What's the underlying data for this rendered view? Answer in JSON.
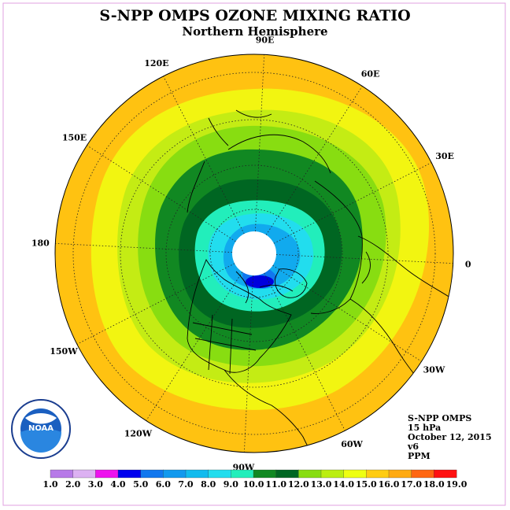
{
  "title": "S-NPP OMPS OZONE MIXING RATIO",
  "subtitle": "Northern Hemisphere",
  "longitude_labels": [
    "90E",
    "60E",
    "30E",
    "0",
    "30W",
    "60W",
    "90W",
    "120W",
    "150W",
    "180",
    "150E",
    "120E"
  ],
  "info": {
    "line1": "S-NPP OMPS",
    "line2": "15 hPa",
    "line3": "October 12, 2015",
    "line4": "v6",
    "line5": "PPM"
  },
  "logo": {
    "text": "NOAA",
    "ring_text": "NATIONAL OCEANIC AND ATMOSPHERIC ADMINISTRATION · U.S. DEPARTMENT OF COMMERCE"
  },
  "colorbar": {
    "ticks": [
      "1.0",
      "2.0",
      "3.0",
      "4.0",
      "5.0",
      "6.0",
      "7.0",
      "8.0",
      "9.0",
      "10.0",
      "11.0",
      "12.0",
      "13.0",
      "14.0",
      "15.0",
      "16.0",
      "17.0",
      "18.0",
      "19.0"
    ],
    "colors": [
      "#b77ae8",
      "#dcb1f2",
      "#ee11ee",
      "#0000ee",
      "#1177ee",
      "#1199ee",
      "#11bbee",
      "#22ddee",
      "#22eebb",
      "#118822",
      "#006622",
      "#88dd11",
      "#bbee11",
      "#eeff11",
      "#ffcc11",
      "#ffaa11",
      "#ff6611",
      "#ff1111",
      "#884422"
    ]
  },
  "map_colors": {
    "level_15": "#ffc211",
    "level_14": "#f2f511",
    "level_13": "#c4ec14",
    "level_12": "#88dd11",
    "level_11": "#118822",
    "level_10": "#006622",
    "level_9": "#22eebb",
    "level_8": "#22ddee",
    "level_7": "#11aaee",
    "level_5": "#1177ee",
    "level_4": "#0000dd",
    "no_data": "#ffffff"
  }
}
